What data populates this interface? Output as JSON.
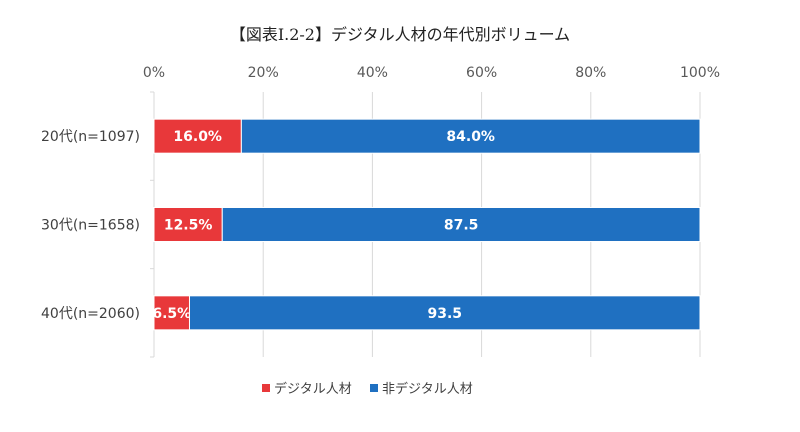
{
  "chart_data": {
    "type": "bar",
    "orientation": "horizontal-stacked-100",
    "title": "【図表Ⅰ.2-2】デジタル人材の年代別ボリューム",
    "xlim": [
      0,
      100
    ],
    "xticks": [
      "0%",
      "20%",
      "40%",
      "60%",
      "80%",
      "100%"
    ],
    "categories": [
      "20代(n=1097)",
      "30代(n=1658)",
      "40代(n=2060)"
    ],
    "series": [
      {
        "name": "デジタル人材",
        "color": "#e8383a",
        "values": [
          16.0,
          12.5,
          6.5
        ],
        "labels": [
          "16.0%",
          "12.5%",
          "6.5%"
        ]
      },
      {
        "name": "非デジタル人材",
        "color": "#1f70c1",
        "values": [
          84.0,
          87.5,
          93.5
        ],
        "labels": [
          "84.0%",
          "87.5",
          "93.5"
        ]
      }
    ],
    "legend": "bottom",
    "grid": true
  }
}
